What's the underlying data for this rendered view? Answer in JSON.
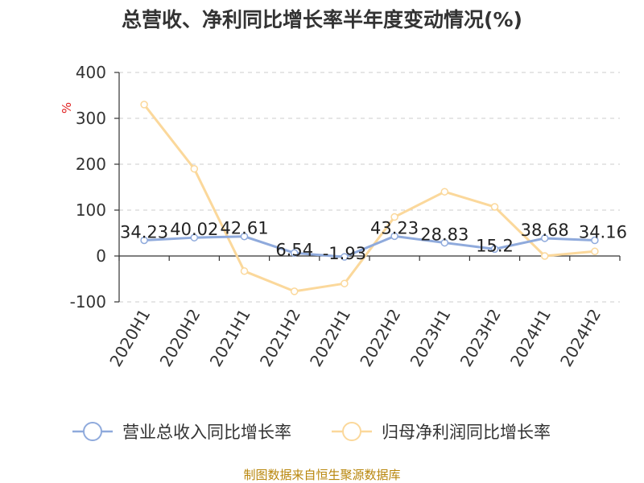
{
  "chart_data": {
    "type": "line",
    "title": "总营收、净利同比增长率半年度变动情况(%)",
    "ylabel": "%",
    "xlabel": "",
    "categories": [
      "2020H1",
      "2020H2",
      "2021H1",
      "2021H2",
      "2022H1",
      "2022H2",
      "2023H1",
      "2023H2",
      "2024H1",
      "2024H2"
    ],
    "ylim": [
      -100,
      400
    ],
    "yticks": [
      400,
      300,
      200,
      100,
      0,
      -100
    ],
    "grid": true,
    "legend_position": "bottom",
    "series": [
      {
        "name": "营业总收入同比增长率",
        "color": "#8faadc",
        "values": [
          34.23,
          40.02,
          42.61,
          6.54,
          -1.93,
          43.23,
          28.83,
          15.2,
          38.68,
          34.16
        ],
        "labels": [
          "34.23",
          "40.02",
          "42.61",
          "6.54",
          "-1.93",
          "43.23",
          "28.83",
          "15.2",
          "38.68",
          "34.16"
        ]
      },
      {
        "name": "归母净利润同比增长率",
        "color": "#fbd89b",
        "values": [
          330,
          190,
          -33,
          -77,
          -60,
          85,
          140,
          107,
          0,
          10
        ]
      }
    ]
  },
  "source": "制图数据来自恒生聚源数据库"
}
